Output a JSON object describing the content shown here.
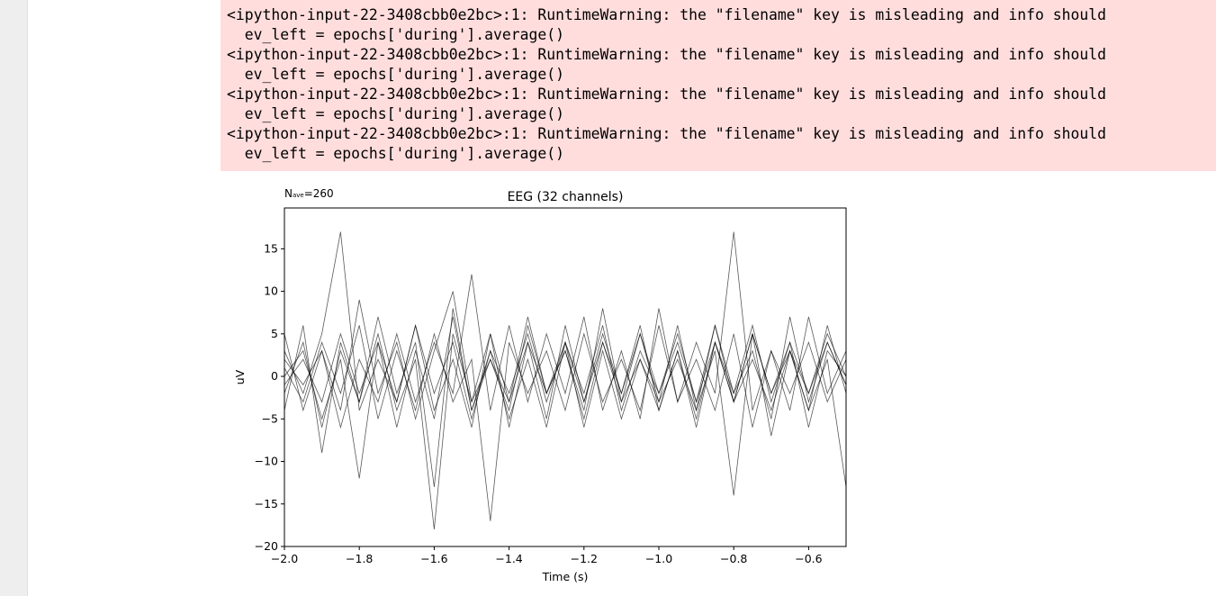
{
  "warnings": [
    {
      "line": "<ipython-input-22-3408cbb0e2bc>:1: RuntimeWarning: the \"filename\" key is misleading and info should",
      "code": "  ev_left = epochs['during'].average()"
    },
    {
      "line": "<ipython-input-22-3408cbb0e2bc>:1: RuntimeWarning: the \"filename\" key is misleading and info should",
      "code": "  ev_left = epochs['during'].average()"
    },
    {
      "line": "<ipython-input-22-3408cbb0e2bc>:1: RuntimeWarning: the \"filename\" key is misleading and info should",
      "code": "  ev_left = epochs['during'].average()"
    },
    {
      "line": "<ipython-input-22-3408cbb0e2bc>:1: RuntimeWarning: the \"filename\" key is misleading and info should",
      "code": "  ev_left = epochs['during'].average()"
    }
  ],
  "chart_data": {
    "type": "line",
    "title": "EEG (32 channels)",
    "annotation": {
      "main": "N",
      "sub": "ave",
      "rest": "=260"
    },
    "x_label": "Time (s)",
    "y_label": "uV",
    "color": "#000000",
    "xlim": [
      -2.0,
      -0.5
    ],
    "ylim": [
      -20,
      19.8
    ],
    "xticks": [
      {
        "value": -2.0,
        "label": "−2.0"
      },
      {
        "value": -1.8,
        "label": "−1.8"
      },
      {
        "value": -1.6,
        "label": "−1.6"
      },
      {
        "value": -1.4,
        "label": "−1.4"
      },
      {
        "value": -1.2,
        "label": "−1.2"
      },
      {
        "value": -1.0,
        "label": "−1.0"
      },
      {
        "value": -0.8,
        "label": "−0.8"
      },
      {
        "value": -0.6,
        "label": "−0.6"
      }
    ],
    "yticks": [
      {
        "value": -20,
        "label": "−20"
      },
      {
        "value": -15,
        "label": "−15"
      },
      {
        "value": -10,
        "label": "−10"
      },
      {
        "value": -5,
        "label": "−5"
      },
      0,
      5,
      10,
      15
    ],
    "x": [
      -2.0,
      -1.95,
      -1.9,
      -1.85,
      -1.8,
      -1.75,
      -1.7,
      -1.65,
      -1.6,
      -1.55,
      -1.5,
      -1.45,
      -1.4,
      -1.35,
      -1.3,
      -1.25,
      -1.2,
      -1.15,
      -1.1,
      -1.05,
      -1.0,
      -0.95,
      -0.9,
      -0.85,
      -0.8,
      -0.75,
      -0.7,
      -0.65,
      -0.6,
      -0.55,
      -0.5
    ],
    "series": [
      {
        "values": [
          3,
          -2,
          5,
          17,
          -4,
          2,
          -3,
          6,
          -2,
          4,
          -5,
          3,
          -2,
          5,
          -3,
          4,
          -2,
          6,
          -4,
          3,
          -2,
          5,
          -3,
          4,
          -2,
          6,
          -3,
          4,
          -2,
          5,
          0
        ]
      },
      {
        "values": [
          -2,
          4,
          -6,
          3,
          -3,
          5,
          -4,
          2,
          -18,
          5,
          -3,
          2,
          -4,
          6,
          -2,
          3,
          -5,
          4,
          -3,
          2,
          -4,
          3,
          -5,
          4,
          -3,
          2,
          -4,
          3,
          -2,
          4,
          -1
        ]
      },
      {
        "values": [
          1,
          -3,
          4,
          -2,
          6,
          -5,
          3,
          -4,
          5,
          -3,
          2,
          -17,
          4,
          -2,
          3,
          -4,
          5,
          -3,
          2,
          -4,
          6,
          -3,
          4,
          -2,
          17,
          -4,
          3,
          -2,
          4,
          -3,
          2
        ]
      },
      {
        "values": [
          5,
          -4,
          3,
          -6,
          2,
          -3,
          5,
          -3,
          4,
          -2,
          12,
          -4,
          6,
          -3,
          5,
          -2,
          7,
          -4,
          3,
          -5,
          8,
          -3,
          2,
          -4,
          5,
          -6,
          3,
          -4,
          7,
          -2,
          3
        ]
      },
      {
        "values": [
          -4,
          6,
          -9,
          4,
          -3,
          7,
          -2,
          4,
          -13,
          8,
          -4,
          3,
          -5,
          2,
          -6,
          4,
          -3,
          5,
          -2,
          6,
          -4,
          3,
          -6,
          4,
          -3,
          5,
          -7,
          3,
          -4,
          2,
          -13
        ]
      },
      {
        "values": [
          2,
          -1,
          3,
          -4,
          9,
          -2,
          4,
          -5,
          3,
          10,
          -3,
          5,
          -6,
          4,
          -2,
          3,
          -4,
          8,
          -3,
          5,
          -2,
          4,
          -3,
          6,
          -2,
          3,
          -5,
          7,
          -3,
          4,
          -1
        ]
      },
      {
        "values": [
          0,
          3,
          -5,
          2,
          -12,
          4,
          -3,
          6,
          -4,
          2,
          -6,
          5,
          -3,
          7,
          -2,
          4,
          -6,
          3,
          -5,
          2,
          -3,
          6,
          -4,
          3,
          -14,
          5,
          -2,
          4,
          -6,
          3,
          0
        ]
      },
      {
        "values": [
          -1,
          2,
          -3,
          5,
          -2,
          4,
          -6,
          3,
          -5,
          7,
          -4,
          2,
          -3,
          4,
          -5,
          6,
          -3,
          4,
          -2,
          5,
          -3,
          2,
          -4,
          6,
          -3,
          5,
          -2,
          3,
          -4,
          6,
          -2
        ]
      }
    ]
  }
}
